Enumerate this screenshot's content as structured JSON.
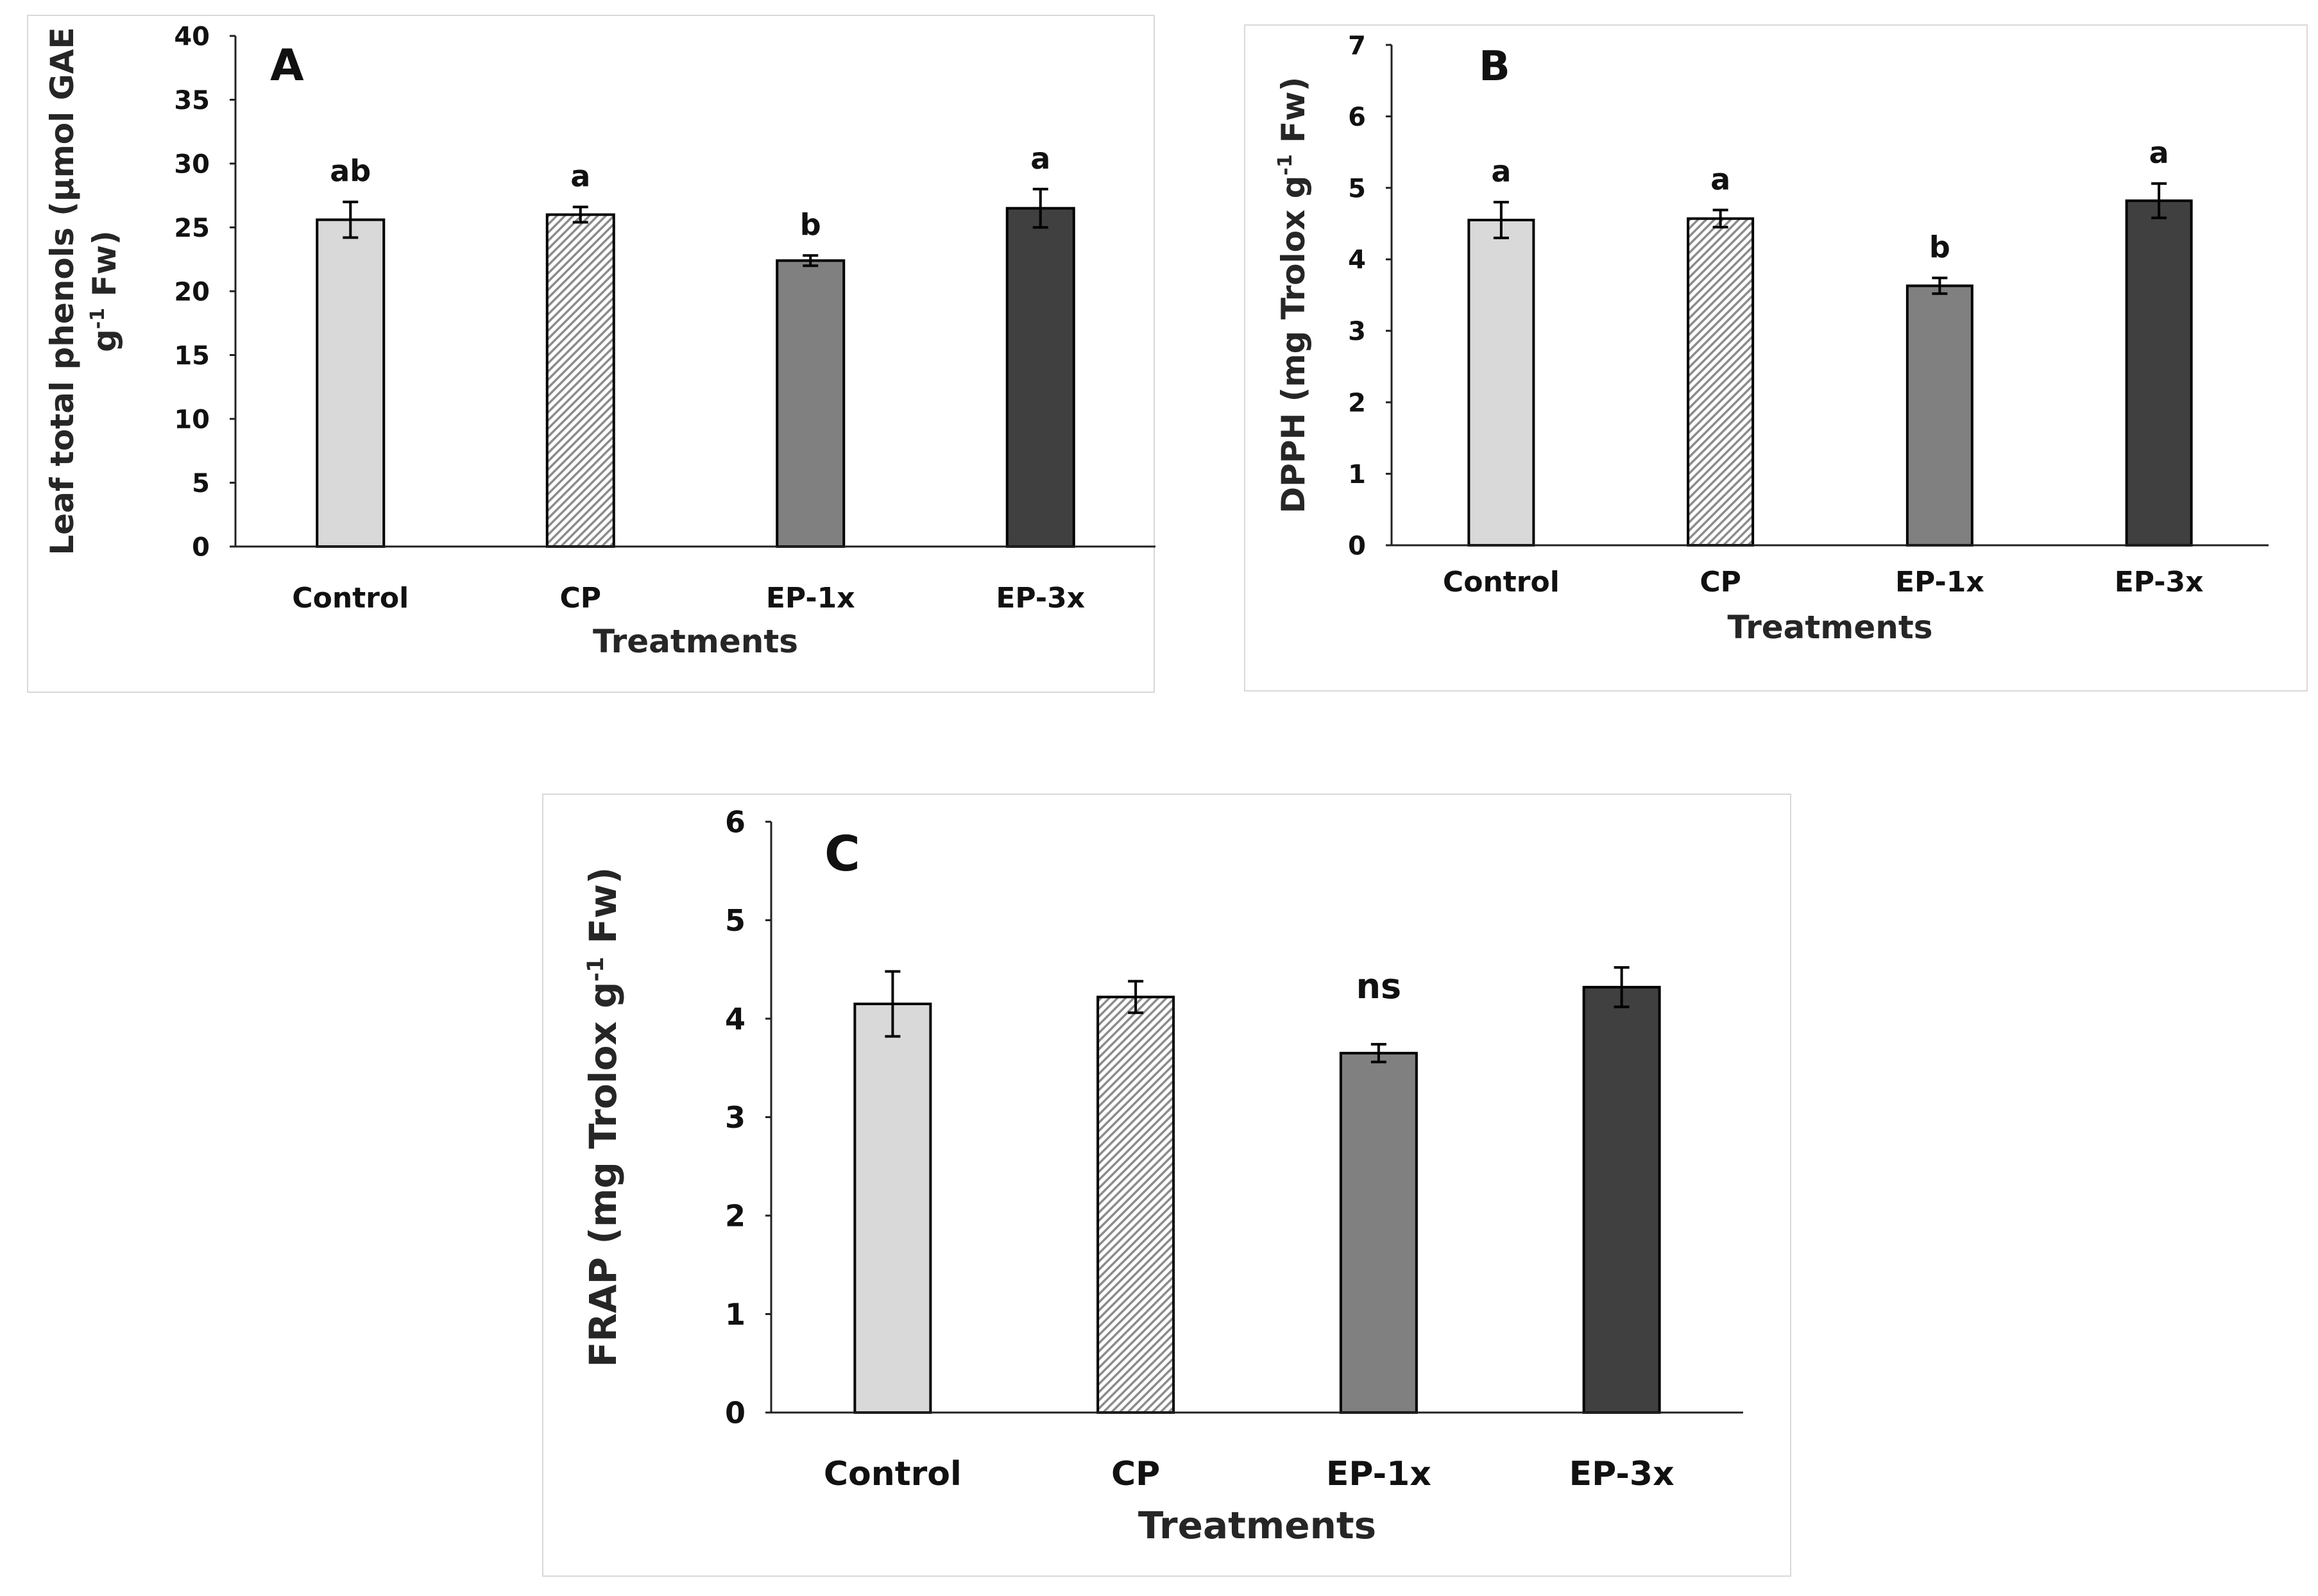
{
  "chart_data": [
    {
      "panel": "A",
      "type": "bar",
      "categories": [
        "Control",
        "CP",
        "EP-1x",
        "EP-3x"
      ],
      "values": [
        25.6,
        26.0,
        22.4,
        26.5
      ],
      "errors": [
        1.4,
        0.6,
        0.4,
        1.5
      ],
      "significance": [
        "ab",
        "a",
        "b",
        "a"
      ],
      "ylim": [
        0,
        40
      ],
      "yticks": [
        0,
        5,
        10,
        15,
        20,
        25,
        30,
        35,
        40
      ],
      "xlabel": "Treatments",
      "ylabel_line1": "Leaf total phenols (µmol GAE",
      "ylabel_line2_pre": "g",
      "ylabel_line2_sup": "-1",
      "ylabel_line2_post": " Fw)",
      "bar_colors": [
        "#d9d9d9",
        "hatch",
        "#808080",
        "#404040"
      ]
    },
    {
      "panel": "B",
      "type": "bar",
      "categories": [
        "Control",
        "CP",
        "EP-1x",
        "EP-3x"
      ],
      "values": [
        4.55,
        4.57,
        3.63,
        4.82
      ],
      "errors": [
        0.25,
        0.12,
        0.11,
        0.24
      ],
      "significance": [
        "a",
        "a",
        "b",
        "a"
      ],
      "ylim": [
        0,
        7
      ],
      "yticks": [
        0,
        1,
        2,
        3,
        4,
        5,
        6,
        7
      ],
      "xlabel": "Treatments",
      "ylabel_pre": "DPPH (mg Trolox g",
      "ylabel_sup": "-1",
      "ylabel_post": " Fw)",
      "bar_colors": [
        "#d9d9d9",
        "hatch",
        "#808080",
        "#404040"
      ]
    },
    {
      "panel": "C",
      "type": "bar",
      "categories": [
        "Control",
        "CP",
        "EP-1x",
        "EP-3x"
      ],
      "values": [
        4.15,
        4.22,
        3.65,
        4.32
      ],
      "errors": [
        0.33,
        0.16,
        0.09,
        0.2
      ],
      "annotation": "ns",
      "ylim": [
        0,
        6
      ],
      "yticks": [
        0,
        1,
        2,
        3,
        4,
        5,
        6
      ],
      "xlabel": "Treatments",
      "ylabel_pre": "FRAP (mg Trolox g",
      "ylabel_sup": "-1",
      "ylabel_post": " Fw)",
      "bar_colors": [
        "#d9d9d9",
        "hatch",
        "#808080",
        "#404040"
      ]
    }
  ]
}
